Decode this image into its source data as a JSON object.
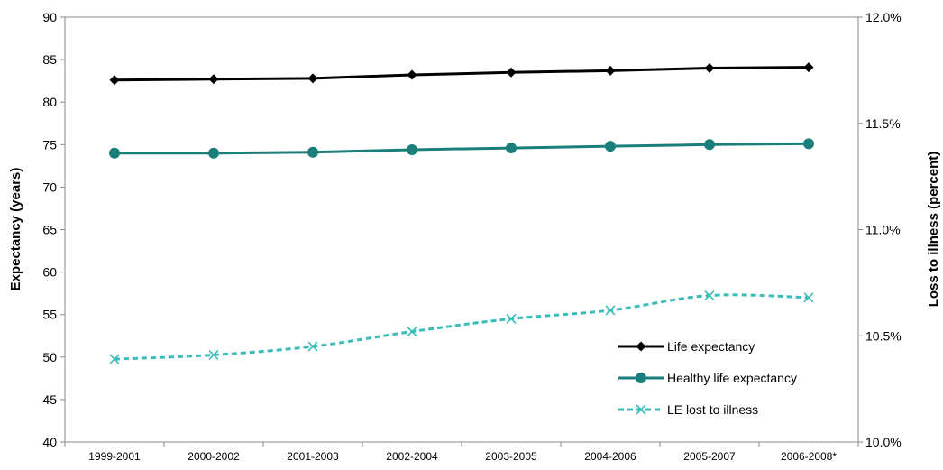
{
  "chart_data": {
    "type": "line",
    "categories": [
      "1999-2001",
      "2000-2002",
      "2001-2003",
      "2002-2004",
      "2003-2005",
      "2004-2006",
      "2005-2007",
      "2006-2008*"
    ],
    "ylabel": "Expectancy (years)",
    "y2label": "Loss to illness (percent)",
    "ylim": [
      40,
      90
    ],
    "yticks": [
      "90",
      "85",
      "80",
      "75",
      "70",
      "65",
      "60",
      "55",
      "50",
      "45",
      "40"
    ],
    "y2lim": [
      10.0,
      12.0
    ],
    "y2ticks": [
      "12.0%",
      "11.5%",
      "11.0%",
      "10.5%",
      "10.0%"
    ],
    "grid": false,
    "legend_position": "bottom-right",
    "series": [
      {
        "name": "Life expectancy",
        "axis": "left",
        "color": "#000000",
        "marker": "diamond",
        "line": "solid",
        "values": [
          82.6,
          82.7,
          82.8,
          83.2,
          83.5,
          83.7,
          84.0,
          84.1
        ]
      },
      {
        "name": "Healthy life expectancy",
        "axis": "left",
        "color": "#1a7f7a",
        "marker": "circle",
        "line": "solid",
        "values": [
          74.0,
          74.0,
          74.1,
          74.4,
          74.6,
          74.8,
          75.0,
          75.1
        ]
      },
      {
        "name": "LE lost to illness",
        "axis": "right",
        "color": "#3cbcb8",
        "marker": "x",
        "line": "dashed",
        "values": [
          10.39,
          10.41,
          10.45,
          10.52,
          10.58,
          10.62,
          10.69,
          10.68
        ]
      }
    ]
  }
}
